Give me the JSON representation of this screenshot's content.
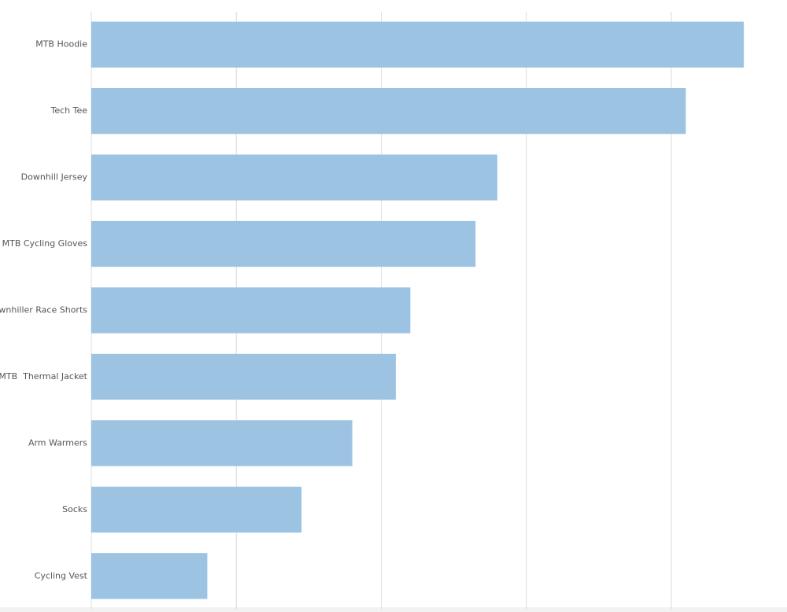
{
  "chart_data": {
    "type": "hbar",
    "categories": [
      "MTB Hoodie",
      "Tech Tee",
      "Downhill Jersey",
      "MTB Cycling Gloves",
      "Downhiller Race Shorts",
      "MTB  Thermal Jacket",
      "Arm Warmers",
      "Socks",
      "Cycling Vest"
    ],
    "values": [
      45,
      41,
      28,
      26.5,
      22,
      21,
      18,
      14.5,
      8
    ],
    "color": "#9dc3e2",
    "xlim": [
      0,
      47
    ],
    "xticks": [
      0,
      10,
      20,
      30,
      40
    ],
    "grid": true
  }
}
